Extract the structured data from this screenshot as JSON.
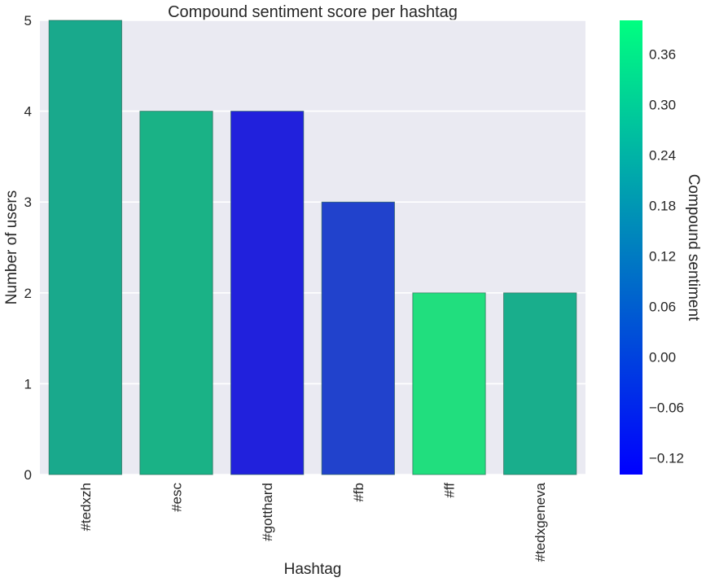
{
  "chart_data": {
    "type": "bar",
    "title": "Compound sentiment score per hashtag",
    "xlabel": "Hashtag",
    "ylabel": "Number of users",
    "categories": [
      "#tedxzh",
      "#esc",
      "#gotthard",
      "#fb",
      "#ff",
      "#tedxgeneva"
    ],
    "values": [
      5,
      4,
      4,
      3,
      2,
      2
    ],
    "sentiment": [
      0.245,
      0.28,
      -0.11,
      -0.06,
      0.355,
      0.245
    ],
    "bar_colors": [
      "#19a98c",
      "#1ab286",
      "#2121dc",
      "#2142cc",
      "#21de7e",
      "#19ae8c"
    ],
    "ylim": [
      0,
      5
    ],
    "yticks": [
      0,
      1,
      2,
      3,
      4,
      5
    ],
    "grid": true,
    "plot_background": "#eaeaf2",
    "colorbar": {
      "label": "Compound sentiment",
      "colormap": "winter",
      "range": [
        -0.14,
        0.4
      ],
      "ticks": [
        "−0.12",
        "−0.06",
        "0.00",
        "0.06",
        "0.12",
        "0.18",
        "0.24",
        "0.30",
        "0.36"
      ],
      "tick_values": [
        -0.12,
        -0.06,
        0.0,
        0.06,
        0.12,
        0.18,
        0.24,
        0.3,
        0.36
      ],
      "color_low": "#0000ff",
      "color_high": "#00ff80"
    }
  }
}
